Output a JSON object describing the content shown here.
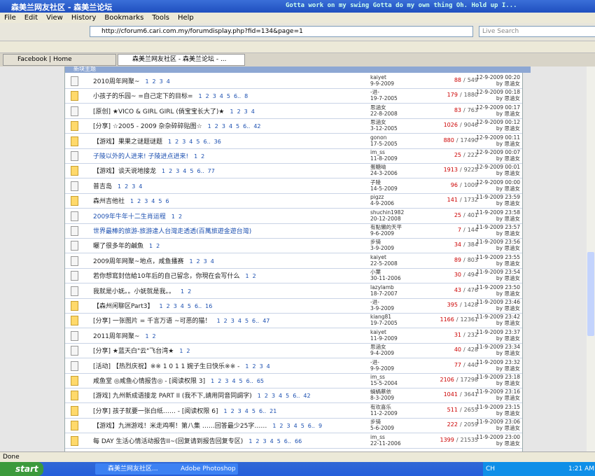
{
  "window": {
    "title": "森美兰网友社区 - 森美兰论坛",
    "media_text": "Gotta work on my swing  Gotta do my own thing  Oh.  Hold up  I..."
  },
  "menu": [
    "File",
    "Edit",
    "View",
    "History",
    "Bookmarks",
    "Tools",
    "Help"
  ],
  "address": "http://cforum6.cari.com.my/forumdisplay.php?fid=134&page=1",
  "search": "Live Search",
  "tabs": [
    "Facebook | Home",
    "森美兰网友社区 - 森美兰论坛 - ..."
  ],
  "section": "新块主题",
  "separator": "/",
  "rows": [
    {
      "title": "2010周年网聚~",
      "pages": [
        "1",
        "2",
        "3",
        "4"
      ],
      "author": "kaiyet",
      "date": "9-9-2009",
      "replies": 88,
      "views": 549,
      "last": "12-9-2009 00:20",
      "last_by": "by 思涵女"
    },
    {
      "title": "小孩子的乐园~ =自己定下的目标=",
      "pages": [
        "1",
        "2",
        "3",
        "4",
        "5",
        "6..",
        "8"
      ],
      "author": "-进-",
      "date": "19-7-2005",
      "replies": 179,
      "views": 1880,
      "last": "12-9-2009 00:18",
      "last_by": "by 思涵女"
    },
    {
      "title": "[原创] ★VICO & GIRL GIRL (倘宝宝长大了)★",
      "pages": [
        "1",
        "2",
        "3",
        "4"
      ],
      "author": "思涵女",
      "date": "22-8-2008",
      "replies": 83,
      "views": 763,
      "last": "12-9-2009 00:17",
      "last_by": "by 思涵女"
    },
    {
      "title": "[分享] ☆2005 - 2009 杂杂碎碎贴图☆",
      "pages": [
        "1",
        "2",
        "3",
        "4",
        "5",
        "6..",
        "42"
      ],
      "author": "思涵女",
      "date": "3-12-2005",
      "replies": 1026,
      "views": 9046,
      "last": "12-9-2009 00:12",
      "last_by": "by 思涵女"
    },
    {
      "title": "【游戏】果果之谜题谜题",
      "pages": [
        "1",
        "2",
        "3",
        "4",
        "5",
        "6..",
        "36"
      ],
      "author": "gonon",
      "date": "17-5-2005",
      "replies": 880,
      "views": 17490,
      "last": "12-9-2009 00:11",
      "last_by": "by 思涵女"
    },
    {
      "title": "子陵以外的人进来! 子陵进点进来!",
      "pages": [
        "1",
        "2"
      ],
      "author": "im_ss",
      "date": "11-8-2009",
      "replies": 25,
      "views": 222,
      "last": "12-9-2009 00:07",
      "last_by": "by 思涵女"
    },
    {
      "title": "【游戏】谈天说地接龙",
      "pages": [
        "1",
        "2",
        "3",
        "4",
        "5",
        "6..",
        "77"
      ],
      "author": "蛋糖呦",
      "date": "24-3-2006",
      "replies": 1913,
      "views": 9225,
      "last": "12-9-2009 00:01",
      "last_by": "by 思涵女"
    },
    {
      "title": "普吉岛",
      "pages": [
        "1",
        "2",
        "3",
        "4"
      ],
      "author": "子陵",
      "date": "14-5-2009",
      "replies": 96,
      "views": 1009,
      "last": "12-9-2009 00:00",
      "last_by": "by 思涵女"
    },
    {
      "title": "森州吉他社",
      "pages": [
        "1",
        "2",
        "3",
        "4",
        "5",
        "6"
      ],
      "author": "pigzz",
      "date": "4-9-2006",
      "replies": 141,
      "views": 1732,
      "last": "11-9-2009 23:59",
      "last_by": "by 思涵女"
    },
    {
      "title": "2009年牛年十二生肖运程",
      "pages": [
        "1",
        "2"
      ],
      "author": "shuchin1982",
      "date": "20-12-2008",
      "replies": 25,
      "views": 401,
      "last": "11-9-2009 23:58",
      "last_by": "by 思涵女"
    },
    {
      "title": "世界最棒的旅游-旅游達人台灣走透透(百萬旅遊金遊台灣)",
      "pages": [],
      "author": "有點懶的天平",
      "date": "9-6-2009",
      "replies": 7,
      "views": 144,
      "last": "11-9-2009 23:57",
      "last_by": "by 思涵女"
    },
    {
      "title": "曬了很多年的鹹魚",
      "pages": [
        "1",
        "2"
      ],
      "author": "步骑",
      "date": "3-9-2009",
      "replies": 34,
      "views": 384,
      "last": "11-9-2009 23:56",
      "last_by": "by 思涵女"
    },
    {
      "title": "2009周年网聚~地点，咸鱼播赛",
      "pages": [
        "1",
        "2",
        "3",
        "4"
      ],
      "author": "kaiyet",
      "date": "22-5-2008",
      "replies": 89,
      "views": 803,
      "last": "11-9-2009 23:55",
      "last_by": "by 思涵女"
    },
    {
      "title": "若你想寫封信給10年后的自己留念，你現在会写什么",
      "pages": [
        "1",
        "2"
      ],
      "author": "小葉",
      "date": "30-11-2006",
      "replies": 30,
      "views": 494,
      "last": "11-9-2009 23:54",
      "last_by": "by 思涵女"
    },
    {
      "title": "我就是小妩。。小妩就是我。。",
      "pages": [
        "1",
        "2"
      ],
      "author": "lazylamb",
      "date": "18-7-2007",
      "replies": 43,
      "views": 476,
      "last": "11-9-2009 23:50",
      "last_by": "by 思涵女"
    },
    {
      "title": "【森州闲聊区Part3】",
      "pages": [
        "1",
        "2",
        "3",
        "4",
        "5",
        "6..",
        "16"
      ],
      "author": "-进-",
      "date": "3-9-2009",
      "replies": 395,
      "views": 1428,
      "last": "11-9-2009 23:46",
      "last_by": "by 思涵女"
    },
    {
      "title": "[分享] 一张图片 = 千言万语 ~可恶的猫！",
      "pages": [
        "1",
        "2",
        "3",
        "4",
        "5",
        "6..",
        "47"
      ],
      "author": "kiang81",
      "date": "19-7-2005",
      "replies": 1166,
      "views": 12361,
      "last": "11-9-2009 23:42",
      "last_by": "by 思涵女"
    },
    {
      "title": "2011周年网聚~",
      "pages": [
        "1",
        "2"
      ],
      "author": "kaiyet",
      "date": "11-9-2009",
      "replies": 31,
      "views": 232,
      "last": "11-9-2009 23:37",
      "last_by": "by 思涵女"
    },
    {
      "title": "[分享] ★蓝天白\"云\"飞台湾★",
      "pages": [
        "1",
        "2"
      ],
      "author": "思涵女",
      "date": "9-4-2009",
      "replies": 40,
      "views": 428,
      "last": "11-9-2009 23:34",
      "last_by": "by 思涵女"
    },
    {
      "title": "[活动] 【热烈庆祝】※※ 1 0 1 1 婉子生日快乐※※ -",
      "pages": [
        "1",
        "2",
        "3",
        "4"
      ],
      "author": "-进-",
      "date": "9-9-2009",
      "replies": 77,
      "views": 440,
      "last": "11-9-2009 23:32",
      "last_by": "by 思涵女"
    },
    {
      "title": "咸鱼堂 ◎咸鱼心情报告◎ - [阅读权限 3]",
      "pages": [
        "1",
        "2",
        "3",
        "4",
        "5",
        "6..",
        "65"
      ],
      "author": "im_ss",
      "date": "15-5-2004",
      "replies": 2106,
      "views": 17298,
      "last": "11-9-2009 23:18",
      "last_by": "by 思涵女"
    },
    {
      "title": "[游戏] 九州新成语接龙 PART II (我不下,請用同音同調字)",
      "pages": [
        "1",
        "2",
        "3",
        "4",
        "5",
        "6..",
        "42"
      ],
      "author": "蝸蝸蔡依",
      "date": "8-3-2009",
      "replies": 1041,
      "views": 3641,
      "last": "11-9-2009 23:16",
      "last_by": "by 思涵女"
    },
    {
      "title": "[分享] 孩子就要一张白纸…… - [阅读权限 6]",
      "pages": [
        "1",
        "2",
        "3",
        "4",
        "5",
        "6..",
        "21"
      ],
      "author": "有欢喜乐",
      "date": "11-2-2009",
      "replies": 511,
      "views": 2655,
      "last": "11-9-2009 23:15",
      "last_by": "by 思涵女"
    },
    {
      "title": "【游戏】九洲游戏！米走鸡啊！第八集 ……回答最少25字……",
      "pages": [
        "1",
        "2",
        "3",
        "4",
        "5",
        "6..",
        "9"
      ],
      "author": "步骑",
      "date": "5-6-2009",
      "replies": 222,
      "views": 2059,
      "last": "11-9-2009 23:06",
      "last_by": "by 思涵女"
    },
    {
      "title": "每 DAY 生活心情活动报告II~(回复请到报告回复专区)",
      "pages": [
        "1",
        "2",
        "3",
        "4",
        "5",
        "6..",
        "66"
      ],
      "author": "im_ss",
      "date": "22-11-2006",
      "replies": 1399,
      "views": 21535,
      "last": "11-9-2009 23:00",
      "last_by": "by 思涵女"
    }
  ],
  "status": "Done",
  "taskbar": {
    "start": "start",
    "tasks": [
      "森美兰网友社区...",
      "Adobe Photoshop"
    ],
    "lang": "CH",
    "clock": "1:21 AM"
  }
}
